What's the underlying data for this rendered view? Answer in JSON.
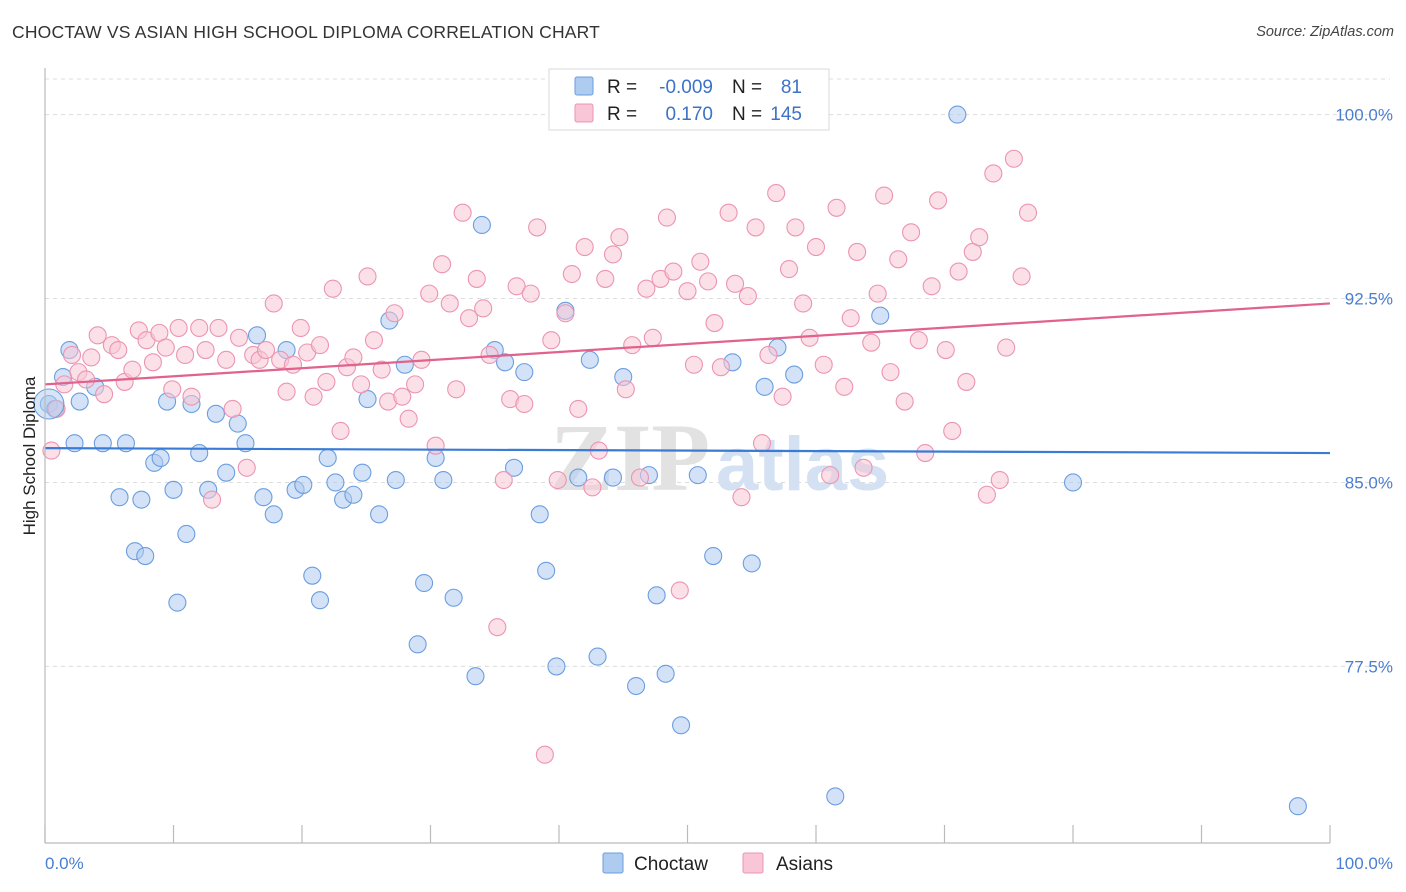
{
  "title": "CHOCTAW VS ASIAN HIGH SCHOOL DIPLOMA CORRELATION CHART",
  "source": "Source: ZipAtlas.com",
  "watermark": {
    "zip": "ZIP",
    "atlas": "atlas"
  },
  "legend": {
    "r_label": "R =",
    "n_label": "N =",
    "rows": [
      {
        "name": "Choctaw",
        "r": "-0.009",
        "n": "81",
        "fill": "#aecbf0",
        "stroke": "#6b9ee0"
      },
      {
        "name": "Asians",
        "r": "0.170",
        "n": "145",
        "fill": "#f8c6d6",
        "stroke": "#ec94b3"
      }
    ]
  },
  "bottom_legend": [
    "Choctaw",
    "Asians"
  ],
  "chart_data": {
    "type": "scatter",
    "title": "CHOCTAW VS ASIAN HIGH SCHOOL DIPLOMA CORRELATION CHART",
    "xlabel": "",
    "ylabel": "High School Diploma",
    "xlim": [
      0,
      100
    ],
    "ylim": [
      70.3,
      101.9
    ],
    "x_tick_labels": [
      "0.0%",
      "100.0%"
    ],
    "y_ticks": [
      77.5,
      85.0,
      92.5,
      100.0
    ],
    "y_tick_labels": [
      "77.5%",
      "85.0%",
      "92.5%",
      "100.0%"
    ],
    "grid": true,
    "series": [
      {
        "name": "Choctaw",
        "color": "#3a7bd5",
        "point_fill": "#aecbf0",
        "point_stroke": "#6b9ee0",
        "trend": [
          [
            0,
            86.4
          ],
          [
            100,
            86.2
          ]
        ],
        "points": [
          [
            0.3,
            88.2
          ],
          [
            0.8,
            88.0
          ],
          [
            1.4,
            89.3
          ],
          [
            1.9,
            90.4
          ],
          [
            2.3,
            86.6
          ],
          [
            2.7,
            88.3
          ],
          [
            3.9,
            88.9
          ],
          [
            4.5,
            86.6
          ],
          [
            5.8,
            84.4
          ],
          [
            6.3,
            86.6
          ],
          [
            7.0,
            82.2
          ],
          [
            7.5,
            84.3
          ],
          [
            7.8,
            82.0
          ],
          [
            8.5,
            85.8
          ],
          [
            9.0,
            86.0
          ],
          [
            9.5,
            88.3
          ],
          [
            10.0,
            84.7
          ],
          [
            10.3,
            80.1
          ],
          [
            11.0,
            82.9
          ],
          [
            11.4,
            88.2
          ],
          [
            12.0,
            86.2
          ],
          [
            12.7,
            84.7
          ],
          [
            13.3,
            87.8
          ],
          [
            14.1,
            85.4
          ],
          [
            15.0,
            87.4
          ],
          [
            15.6,
            86.6
          ],
          [
            16.5,
            91.0
          ],
          [
            17.0,
            84.4
          ],
          [
            17.8,
            83.7
          ],
          [
            18.8,
            90.4
          ],
          [
            19.5,
            84.7
          ],
          [
            20.1,
            84.9
          ],
          [
            20.8,
            81.2
          ],
          [
            21.4,
            80.2
          ],
          [
            22.0,
            86.0
          ],
          [
            22.6,
            85.0
          ],
          [
            23.2,
            84.3
          ],
          [
            24.0,
            84.5
          ],
          [
            24.7,
            85.4
          ],
          [
            25.1,
            88.4
          ],
          [
            26.0,
            83.7
          ],
          [
            26.8,
            91.6
          ],
          [
            27.3,
            85.1
          ],
          [
            28.0,
            89.8
          ],
          [
            29.0,
            78.4
          ],
          [
            29.5,
            80.9
          ],
          [
            30.4,
            86.0
          ],
          [
            31.0,
            85.1
          ],
          [
            31.8,
            80.3
          ],
          [
            33.5,
            77.1
          ],
          [
            34.0,
            95.5
          ],
          [
            35.0,
            90.4
          ],
          [
            35.8,
            89.9
          ],
          [
            36.5,
            85.6
          ],
          [
            37.3,
            89.5
          ],
          [
            38.5,
            83.7
          ],
          [
            39.0,
            81.4
          ],
          [
            39.8,
            77.5
          ],
          [
            40.5,
            92.0
          ],
          [
            41.5,
            85.2
          ],
          [
            42.4,
            90.0
          ],
          [
            43.0,
            77.9
          ],
          [
            44.2,
            85.2
          ],
          [
            45.0,
            89.3
          ],
          [
            46.0,
            76.7
          ],
          [
            47.0,
            85.3
          ],
          [
            47.6,
            80.4
          ],
          [
            48.3,
            77.2
          ],
          [
            49.5,
            75.1
          ],
          [
            50.8,
            85.3
          ],
          [
            52.0,
            82.0
          ],
          [
            53.5,
            89.9
          ],
          [
            55.0,
            81.7
          ],
          [
            56.0,
            88.9
          ],
          [
            57.0,
            90.5
          ],
          [
            58.3,
            89.4
          ],
          [
            61.5,
            72.2
          ],
          [
            65.0,
            91.8
          ],
          [
            71.0,
            100.0
          ],
          [
            80.0,
            85.0
          ],
          [
            97.5,
            71.8
          ]
        ]
      },
      {
        "name": "Asians",
        "color": "#e0628d",
        "point_fill": "#f8c6d6",
        "point_stroke": "#ec94b3",
        "trend": [
          [
            0,
            89.0
          ],
          [
            100,
            92.3
          ]
        ],
        "points": [
          [
            0.5,
            86.3
          ],
          [
            0.9,
            88.0
          ],
          [
            1.5,
            89.0
          ],
          [
            2.1,
            90.2
          ],
          [
            2.6,
            89.5
          ],
          [
            3.2,
            89.2
          ],
          [
            3.6,
            90.1
          ],
          [
            4.1,
            91.0
          ],
          [
            4.6,
            88.6
          ],
          [
            5.2,
            90.6
          ],
          [
            5.7,
            90.4
          ],
          [
            6.2,
            89.1
          ],
          [
            6.8,
            89.6
          ],
          [
            7.3,
            91.2
          ],
          [
            7.9,
            90.8
          ],
          [
            8.4,
            89.9
          ],
          [
            8.9,
            91.1
          ],
          [
            9.4,
            90.5
          ],
          [
            9.9,
            88.8
          ],
          [
            10.4,
            91.3
          ],
          [
            10.9,
            90.2
          ],
          [
            11.4,
            88.5
          ],
          [
            12.0,
            91.3
          ],
          [
            12.5,
            90.4
          ],
          [
            13.0,
            84.3
          ],
          [
            13.5,
            91.3
          ],
          [
            14.1,
            90.0
          ],
          [
            14.6,
            88.0
          ],
          [
            15.1,
            90.9
          ],
          [
            15.7,
            85.6
          ],
          [
            16.2,
            90.2
          ],
          [
            16.7,
            90.0
          ],
          [
            17.2,
            90.4
          ],
          [
            17.8,
            92.3
          ],
          [
            18.3,
            90.0
          ],
          [
            18.8,
            88.7
          ],
          [
            19.3,
            89.8
          ],
          [
            19.9,
            91.3
          ],
          [
            20.4,
            90.3
          ],
          [
            20.9,
            88.5
          ],
          [
            21.4,
            90.6
          ],
          [
            21.9,
            89.1
          ],
          [
            22.4,
            92.9
          ],
          [
            23.0,
            87.1
          ],
          [
            23.5,
            89.7
          ],
          [
            24.0,
            90.1
          ],
          [
            24.6,
            89.0
          ],
          [
            25.1,
            93.4
          ],
          [
            25.6,
            90.8
          ],
          [
            26.2,
            89.6
          ],
          [
            26.7,
            88.3
          ],
          [
            27.2,
            91.9
          ],
          [
            27.8,
            88.5
          ],
          [
            28.3,
            87.6
          ],
          [
            28.8,
            89.0
          ],
          [
            29.3,
            90.0
          ],
          [
            29.9,
            92.7
          ],
          [
            30.4,
            86.5
          ],
          [
            30.9,
            93.9
          ],
          [
            31.5,
            92.3
          ],
          [
            32.0,
            88.8
          ],
          [
            32.5,
            96.0
          ],
          [
            33.0,
            91.7
          ],
          [
            33.6,
            93.3
          ],
          [
            34.1,
            92.1
          ],
          [
            34.6,
            90.2
          ],
          [
            35.2,
            79.1
          ],
          [
            35.7,
            85.1
          ],
          [
            36.2,
            88.4
          ],
          [
            36.7,
            93.0
          ],
          [
            37.3,
            88.2
          ],
          [
            37.8,
            92.7
          ],
          [
            38.3,
            95.4
          ],
          [
            38.9,
            73.9
          ],
          [
            39.4,
            90.8
          ],
          [
            39.9,
            85.1
          ],
          [
            40.5,
            91.9
          ],
          [
            41.0,
            93.5
          ],
          [
            41.5,
            88.0
          ],
          [
            42.0,
            94.6
          ],
          [
            42.6,
            84.8
          ],
          [
            43.1,
            86.3
          ],
          [
            43.6,
            93.3
          ],
          [
            44.2,
            94.3
          ],
          [
            44.7,
            95.0
          ],
          [
            45.2,
            88.8
          ],
          [
            45.7,
            90.6
          ],
          [
            46.3,
            85.2
          ],
          [
            46.8,
            92.9
          ],
          [
            47.3,
            90.9
          ],
          [
            47.9,
            93.3
          ],
          [
            48.4,
            95.8
          ],
          [
            48.9,
            93.6
          ],
          [
            49.4,
            80.6
          ],
          [
            50.0,
            92.8
          ],
          [
            50.5,
            89.8
          ],
          [
            51.0,
            94.0
          ],
          [
            51.6,
            93.2
          ],
          [
            52.1,
            91.5
          ],
          [
            52.6,
            89.7
          ],
          [
            53.2,
            96.0
          ],
          [
            53.7,
            93.1
          ],
          [
            54.2,
            84.4
          ],
          [
            54.7,
            92.6
          ],
          [
            55.3,
            95.4
          ],
          [
            55.8,
            86.6
          ],
          [
            56.3,
            90.2
          ],
          [
            56.9,
            96.8
          ],
          [
            57.4,
            88.5
          ],
          [
            57.9,
            93.7
          ],
          [
            58.4,
            95.4
          ],
          [
            59.0,
            92.3
          ],
          [
            59.5,
            90.9
          ],
          [
            60.0,
            94.6
          ],
          [
            60.6,
            89.8
          ],
          [
            61.1,
            85.3
          ],
          [
            61.6,
            96.2
          ],
          [
            62.2,
            88.9
          ],
          [
            62.7,
            91.7
          ],
          [
            63.2,
            94.4
          ],
          [
            63.7,
            85.6
          ],
          [
            64.3,
            90.7
          ],
          [
            64.8,
            92.7
          ],
          [
            65.3,
            96.7
          ],
          [
            65.8,
            89.5
          ],
          [
            66.4,
            94.1
          ],
          [
            66.9,
            88.3
          ],
          [
            67.4,
            95.2
          ],
          [
            68.0,
            90.8
          ],
          [
            68.5,
            86.2
          ],
          [
            69.0,
            93.0
          ],
          [
            69.5,
            96.5
          ],
          [
            70.1,
            90.4
          ],
          [
            70.6,
            87.1
          ],
          [
            71.1,
            93.6
          ],
          [
            71.7,
            89.1
          ],
          [
            72.2,
            94.4
          ],
          [
            72.7,
            95.0
          ],
          [
            73.3,
            84.5
          ],
          [
            73.8,
            97.6
          ],
          [
            74.3,
            85.1
          ],
          [
            74.8,
            90.5
          ],
          [
            75.4,
            98.2
          ],
          [
            76.0,
            93.4
          ],
          [
            76.5,
            96.0
          ]
        ]
      }
    ]
  }
}
